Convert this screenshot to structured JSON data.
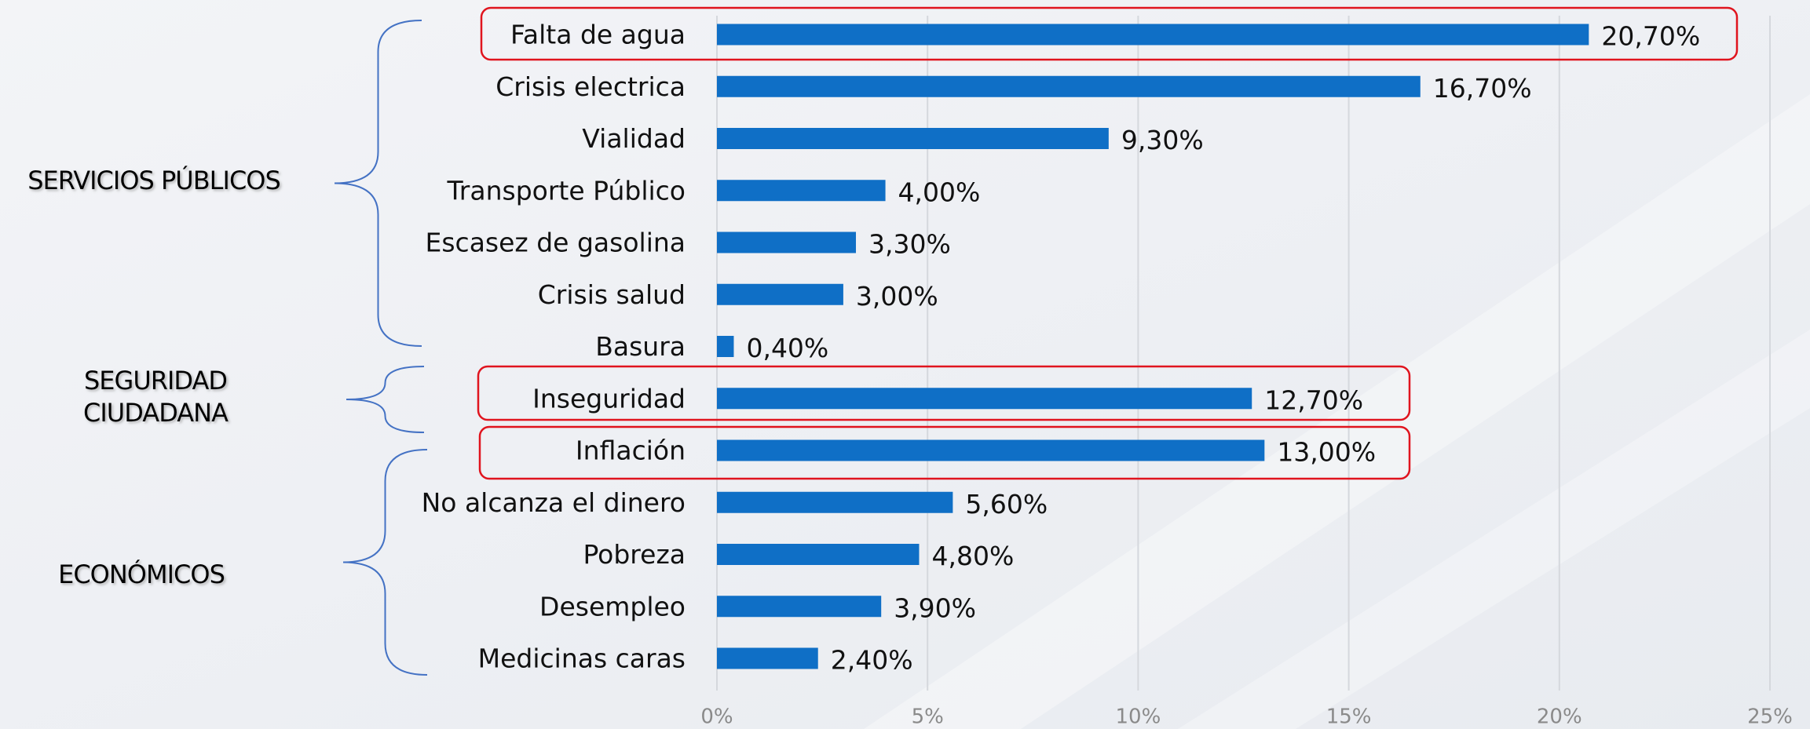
{
  "chart_data": {
    "type": "bar",
    "orientation": "horizontal",
    "categories": [
      "Falta de agua",
      "Crisis electrica",
      "Vialidad",
      "Transporte Público",
      "Escasez de gasolina",
      "Crisis salud",
      "Basura",
      "Inseguridad",
      "Inflación",
      "No alcanza el dinero",
      "Pobreza",
      "Desempleo",
      "Medicinas caras"
    ],
    "values": [
      20.7,
      16.7,
      9.3,
      4.0,
      3.3,
      3.0,
      0.4,
      12.7,
      13.0,
      5.6,
      4.8,
      3.9,
      2.4
    ],
    "value_labels": [
      "20,70%",
      "16,70%",
      "9,30%",
      "4,00%",
      "3,30%",
      "3,00%",
      "0,40%",
      "12,70%",
      "13,00%",
      "5,60%",
      "4,80%",
      "3,90%",
      "2,40%"
    ],
    "color": "#0f6fc6",
    "xlim": [
      0,
      25
    ],
    "xticks": [
      {
        "value": 0,
        "label": "0%"
      },
      {
        "value": 5,
        "label": "5%"
      },
      {
        "value": 10,
        "label": "10%"
      },
      {
        "value": 15,
        "label": "15%"
      },
      {
        "value": 20,
        "label": "20%"
      },
      {
        "value": 25,
        "label": "25%"
      }
    ],
    "grid": true,
    "groups": [
      {
        "label_lines": [
          "SERVICIOS PÚBLICOS"
        ]
      },
      {
        "label_lines": [
          "SEGURIDAD",
          "CIUDADANA"
        ]
      },
      {
        "label_lines": [
          "ECONÓMICOS"
        ]
      }
    ]
  }
}
